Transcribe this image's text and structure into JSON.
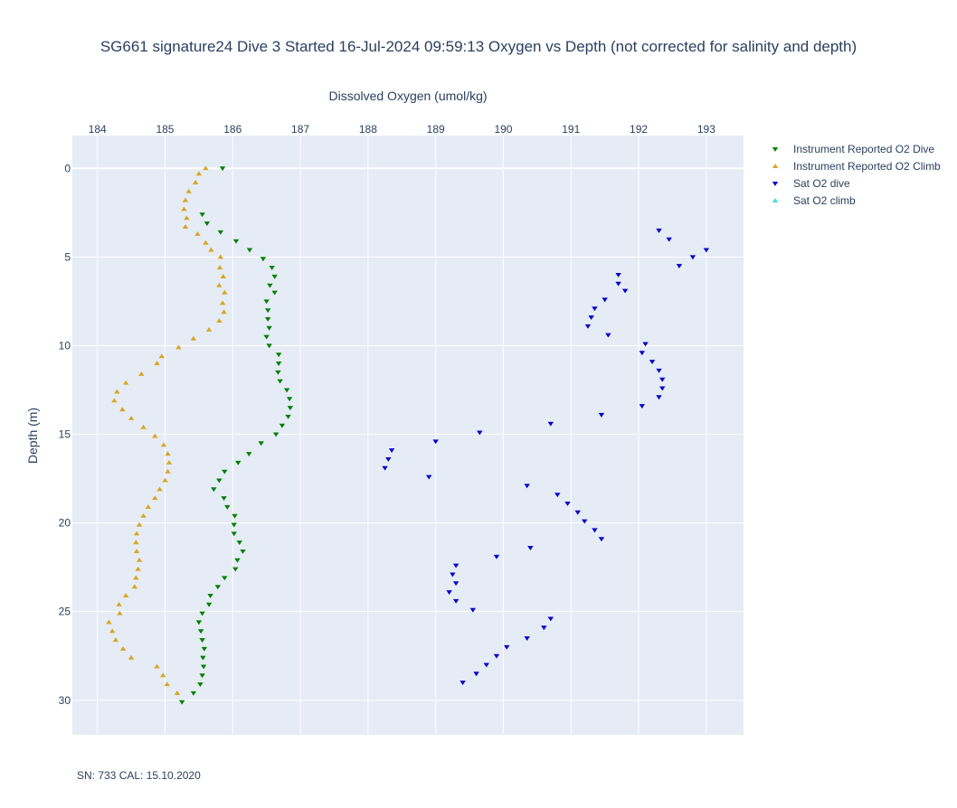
{
  "chart_data": {
    "type": "scatter",
    "title": "SG661 signature24 Dive 3 Started 16-Jul-2024 09:59:13  Oxygen vs Depth (not corrected for salinity and depth)",
    "xlabel": "Dissolved Oxygen (umol/kg)",
    "ylabel": "Depth (m)",
    "xlim": [
      183.63,
      193.55
    ],
    "ylim": [
      31.95,
      -1.85
    ],
    "y_reversed": true,
    "x_axis_position": "top",
    "x_ticks": [
      184,
      185,
      186,
      187,
      188,
      189,
      190,
      191,
      192,
      193
    ],
    "y_ticks": [
      0,
      5,
      10,
      15,
      20,
      25,
      30
    ],
    "grid": true,
    "legend_position": "top-right",
    "series": [
      {
        "name": "Instrument Reported O2 Dive",
        "color": "#008000",
        "marker": "triangle-down",
        "x": [
          185.85,
          185.55,
          185.62,
          185.82,
          186.05,
          186.25,
          186.45,
          186.58,
          186.62,
          186.55,
          186.62,
          186.5,
          186.52,
          186.52,
          186.54,
          186.5,
          186.54,
          186.68,
          186.68,
          186.67,
          186.7,
          186.8,
          186.84,
          186.85,
          186.82,
          186.73,
          186.64,
          186.42,
          186.24,
          186.08,
          185.88,
          185.8,
          185.72,
          185.87,
          185.92,
          186.03,
          186.02,
          186.02,
          186.1,
          186.15,
          186.07,
          186.04,
          185.88,
          185.78,
          185.67,
          185.65,
          185.55,
          185.5,
          185.53,
          185.55,
          185.58,
          185.56,
          185.57,
          185.55,
          185.52,
          185.42,
          185.25
        ],
        "y": [
          0.0,
          2.6,
          3.1,
          3.6,
          4.1,
          4.6,
          5.1,
          5.6,
          6.1,
          6.6,
          7.0,
          7.5,
          8.0,
          8.5,
          9.0,
          9.5,
          10.0,
          10.5,
          11.0,
          11.5,
          12.0,
          12.5,
          13.0,
          13.5,
          14.0,
          14.5,
          15.0,
          15.5,
          16.1,
          16.6,
          17.1,
          17.6,
          18.1,
          18.6,
          19.1,
          19.6,
          20.1,
          20.6,
          21.1,
          21.6,
          22.1,
          22.6,
          23.1,
          23.6,
          24.1,
          24.6,
          25.1,
          25.6,
          26.1,
          26.6,
          27.1,
          27.6,
          28.1,
          28.6,
          29.1,
          29.6,
          30.1
        ]
      },
      {
        "name": "Instrument Reported O2 Climb",
        "color": "#daa520",
        "marker": "triangle-up",
        "x": [
          185.6,
          185.5,
          185.45,
          185.35,
          185.3,
          185.28,
          185.32,
          185.3,
          185.48,
          185.6,
          185.68,
          185.82,
          185.81,
          185.86,
          185.8,
          185.88,
          185.85,
          185.87,
          185.8,
          185.65,
          185.42,
          185.2,
          184.95,
          184.88,
          184.65,
          184.42,
          184.29,
          184.25,
          184.37,
          184.5,
          184.68,
          184.85,
          184.98,
          185.04,
          185.06,
          185.04,
          185.0,
          184.92,
          184.85,
          184.75,
          184.68,
          184.62,
          184.58,
          184.57,
          184.58,
          184.62,
          184.6,
          184.57,
          184.55,
          184.42,
          184.32,
          184.33,
          184.17,
          184.22,
          184.27,
          184.38,
          184.5,
          184.88,
          184.97,
          185.03,
          185.18
        ],
        "y": [
          0.0,
          0.3,
          0.8,
          1.3,
          1.8,
          2.3,
          2.8,
          3.3,
          3.7,
          4.2,
          4.6,
          5.0,
          5.6,
          6.1,
          6.6,
          7.0,
          7.6,
          8.1,
          8.6,
          9.1,
          9.6,
          10.1,
          10.6,
          11.0,
          11.6,
          12.1,
          12.6,
          13.1,
          13.6,
          14.1,
          14.6,
          15.1,
          15.6,
          16.1,
          16.6,
          17.1,
          17.6,
          18.1,
          18.6,
          19.1,
          19.6,
          20.1,
          20.6,
          21.1,
          21.6,
          22.1,
          22.6,
          23.1,
          23.6,
          24.1,
          24.6,
          25.1,
          25.6,
          26.1,
          26.6,
          27.1,
          27.6,
          28.1,
          28.6,
          29.1,
          29.6
        ]
      },
      {
        "name": "Sat O2 dive",
        "color": "#0000cd",
        "marker": "triangle-down",
        "x": [
          192.3,
          192.45,
          193.0,
          192.8,
          192.6,
          191.7,
          191.7,
          191.8,
          191.5,
          191.35,
          191.3,
          191.25,
          191.55,
          192.1,
          192.05,
          192.2,
          192.3,
          192.35,
          192.35,
          192.3,
          192.05,
          191.45,
          190.7,
          189.65,
          189.0,
          188.35,
          188.3,
          188.25,
          188.9,
          190.35,
          190.8,
          190.95,
          191.1,
          191.2,
          191.35,
          191.45,
          190.4,
          189.9,
          189.3,
          189.25,
          189.3,
          189.2,
          189.3,
          189.55,
          190.7,
          190.6,
          190.35,
          190.05,
          189.9,
          189.75,
          189.6,
          189.4
        ],
        "y": [
          3.5,
          4.0,
          4.6,
          5.0,
          5.5,
          6.0,
          6.5,
          6.9,
          7.4,
          7.9,
          8.4,
          8.9,
          9.4,
          9.9,
          10.4,
          10.9,
          11.4,
          11.9,
          12.4,
          12.9,
          13.4,
          13.9,
          14.4,
          14.9,
          15.4,
          15.9,
          16.4,
          16.9,
          17.4,
          17.9,
          18.4,
          18.9,
          19.4,
          19.9,
          20.4,
          20.9,
          21.4,
          21.9,
          22.4,
          22.9,
          23.4,
          23.9,
          24.4,
          24.9,
          25.4,
          25.9,
          26.5,
          27.0,
          27.5,
          28.0,
          28.5,
          29.0
        ]
      },
      {
        "name": "Sat O2 climb",
        "color": "#40e0d0",
        "marker": "triangle-up",
        "x": [],
        "y": []
      }
    ]
  },
  "footer": "SN: 733  CAL: 15.10.2020"
}
